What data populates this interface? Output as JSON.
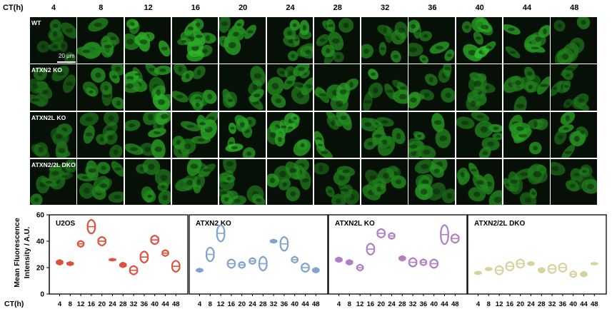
{
  "micrograph": {
    "ct_label": "CT(h)",
    "timepoints": [
      "4",
      "8",
      "12",
      "16",
      "20",
      "24",
      "28",
      "32",
      "36",
      "40",
      "44",
      "48"
    ],
    "rows": [
      "WT",
      "ATXN2 KO",
      "ATXN2L KO",
      "ATXN2/2L DKO"
    ],
    "scale_bar": "20 μm",
    "brightness": [
      [
        0.35,
        0.55,
        0.85,
        0.75,
        0.55,
        0.6,
        0.5,
        0.45,
        0.6,
        0.8,
        0.55,
        0.4
      ],
      [
        0.3,
        0.55,
        0.7,
        0.5,
        0.55,
        0.5,
        0.55,
        0.55,
        0.6,
        0.45,
        0.45,
        0.35
      ],
      [
        0.35,
        0.5,
        0.55,
        0.55,
        0.8,
        0.7,
        0.55,
        0.45,
        0.45,
        0.5,
        0.6,
        0.5
      ],
      [
        0.3,
        0.45,
        0.45,
        0.5,
        0.5,
        0.5,
        0.4,
        0.4,
        0.5,
        0.5,
        0.4,
        0.35
      ]
    ],
    "tint": "#3aa83a"
  },
  "chart_data": {
    "type": "violin",
    "ylabel": "Mean Fluorescence Intensity / A.U.",
    "xlabel": "CT(h)",
    "ylim": [
      0,
      60
    ],
    "yticks": [
      0,
      20,
      40,
      60
    ],
    "categories": [
      "4",
      "8",
      "12",
      "16",
      "20",
      "24",
      "28",
      "32",
      "36",
      "40",
      "44",
      "48"
    ],
    "series": [
      {
        "name": "U2OS",
        "color": "#e0503a",
        "values": [
          24,
          23,
          38,
          51,
          40,
          26,
          22,
          18,
          28,
          41,
          31,
          21
        ],
        "spread": [
          1.5,
          1,
          2,
          5,
          3,
          0.5,
          1.5,
          3,
          4,
          3,
          2,
          4
        ]
      },
      {
        "name": "ATXN2 KO",
        "color": "#7fa3cc",
        "values": [
          18,
          30,
          46,
          23,
          22,
          25,
          23,
          40,
          38,
          26,
          20,
          18
        ],
        "spread": [
          1,
          5,
          6,
          3,
          2,
          2,
          5,
          1,
          5,
          2,
          3,
          1.5
        ]
      },
      {
        "name": "ATXN2L KO",
        "color": "#b07fc3",
        "values": [
          26,
          24,
          20,
          34,
          46,
          44,
          27,
          24,
          24,
          23,
          45,
          42
        ],
        "spread": [
          1.5,
          1.5,
          2,
          4,
          3,
          2,
          1.5,
          3,
          2,
          3,
          7,
          3
        ]
      },
      {
        "name": "ATXN2/2L DKO",
        "color": "#d6d29a",
        "values": [
          16,
          19,
          18,
          21,
          23,
          23,
          18,
          19,
          20,
          15,
          15,
          23
        ],
        "spread": [
          0.8,
          0.8,
          3,
          3,
          3,
          1,
          1.5,
          3,
          3,
          2,
          1.5,
          0.5
        ]
      }
    ]
  }
}
